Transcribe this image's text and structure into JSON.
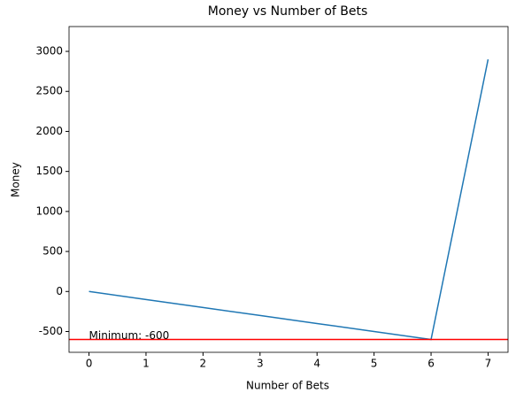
{
  "chart_data": {
    "type": "line",
    "title": "Money vs Number of Bets",
    "x_label": "Number of Bets",
    "y_label": "Money",
    "x": [
      0,
      1,
      2,
      3,
      4,
      5,
      6,
      7
    ],
    "series": [
      {
        "color": "#1f77b4",
        "values": [
          0,
          -100,
          -200,
          -300,
          -400,
          -500,
          -600,
          2900
        ]
      }
    ],
    "hline": {
      "value": -600,
      "color": "#ff0000",
      "annotation": "Minimum: -600"
    },
    "xlim": [
      -0.35,
      7.35
    ],
    "xticks": [
      0,
      1,
      2,
      3,
      4,
      5,
      6,
      7
    ],
    "ylim": [
      -760,
      3310
    ],
    "yticks": [
      -500,
      0,
      500,
      1000,
      1500,
      2000,
      2500,
      3000
    ],
    "grid": false
  }
}
